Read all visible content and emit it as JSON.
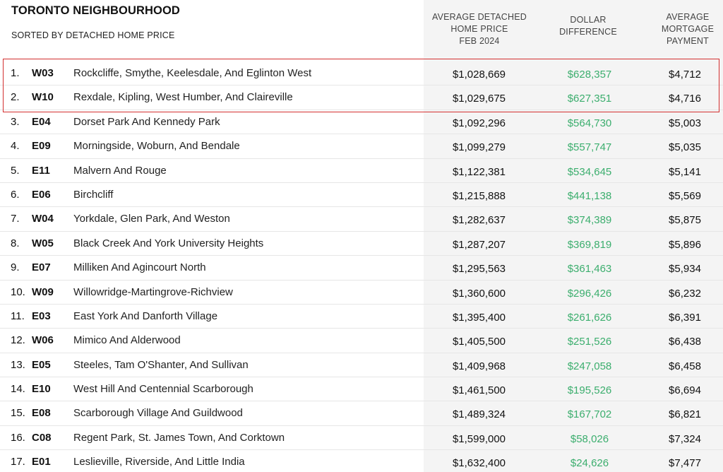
{
  "header": {
    "title": "TORONTO NEIGHBOURHOOD",
    "subtitle": "SORTED BY DETACHED HOME PRICE",
    "col_price": [
      "AVERAGE DETACHED",
      "HOME PRICE",
      "FEB 2024"
    ],
    "col_diff": [
      "DOLLAR",
      "DIFFERENCE"
    ],
    "col_mortgage": [
      "AVERAGE",
      "MORTGAGE",
      "PAYMENT"
    ]
  },
  "colors": {
    "difference_text": "#3cae6e",
    "highlight_border": "#d32f2f",
    "value_column_bg": "#f4f4f4"
  },
  "highlighted_rows": [
    1,
    2
  ],
  "chart_data": {
    "type": "table",
    "title": "TORONTO NEIGHBOURHOOD",
    "subtitle": "SORTED BY DETACHED HOME PRICE",
    "columns": [
      "",
      "",
      "",
      "AVERAGE DETACHED HOME PRICE FEB 2024",
      "DOLLAR DIFFERENCE",
      "AVERAGE MORTGAGE PAYMENT"
    ],
    "rows": [
      {
        "rank": "1.",
        "code": "W03",
        "name": "Rockcliffe, Smythe, Keelesdale, And Eglinton West",
        "price": "$1,028,669",
        "diff": "$628,357",
        "mortgage": "$4,712"
      },
      {
        "rank": "2.",
        "code": "W10",
        "name": "Rexdale, Kipling, West Humber, And Claireville",
        "price": "$1,029,675",
        "diff": "$627,351",
        "mortgage": "$4,716"
      },
      {
        "rank": "3.",
        "code": "E04",
        "name": "Dorset Park And Kennedy Park",
        "price": "$1,092,296",
        "diff": "$564,730",
        "mortgage": "$5,003"
      },
      {
        "rank": "4.",
        "code": "E09",
        "name": "Morningside, Woburn, And Bendale",
        "price": "$1,099,279",
        "diff": "$557,747",
        "mortgage": "$5,035"
      },
      {
        "rank": "5.",
        "code": "E11",
        "name": "Malvern And Rouge",
        "price": "$1,122,381",
        "diff": "$534,645",
        "mortgage": "$5,141"
      },
      {
        "rank": "6.",
        "code": "E06",
        "name": "Birchcliff",
        "price": "$1,215,888",
        "diff": "$441,138",
        "mortgage": "$5,569"
      },
      {
        "rank": "7.",
        "code": "W04",
        "name": "Yorkdale, Glen Park, And Weston",
        "price": "$1,282,637",
        "diff": "$374,389",
        "mortgage": "$5,875"
      },
      {
        "rank": "8.",
        "code": "W05",
        "name": "Black Creek And York University Heights",
        "price": "$1,287,207",
        "diff": "$369,819",
        "mortgage": "$5,896"
      },
      {
        "rank": "9.",
        "code": "E07",
        "name": "Milliken And Agincourt North",
        "price": "$1,295,563",
        "diff": "$361,463",
        "mortgage": "$5,934"
      },
      {
        "rank": "10.",
        "code": "W09",
        "name": "Willowridge-Martingrove-Richview",
        "price": "$1,360,600",
        "diff": "$296,426",
        "mortgage": "$6,232"
      },
      {
        "rank": "11.",
        "code": "E03",
        "name": "East York And Danforth Village",
        "price": "$1,395,400",
        "diff": "$261,626",
        "mortgage": "$6,391"
      },
      {
        "rank": "12.",
        "code": "W06",
        "name": "Mimico And Alderwood",
        "price": "$1,405,500",
        "diff": "$251,526",
        "mortgage": "$6,438"
      },
      {
        "rank": "13.",
        "code": "E05",
        "name": "Steeles, Tam O'Shanter, And Sullivan",
        "price": "$1,409,968",
        "diff": "$247,058",
        "mortgage": "$6,458"
      },
      {
        "rank": "14.",
        "code": "E10",
        "name": "West Hill And Centennial Scarborough",
        "price": "$1,461,500",
        "diff": "$195,526",
        "mortgage": "$6,694"
      },
      {
        "rank": "15.",
        "code": "E08",
        "name": "Scarborough Village And Guildwood",
        "price": "$1,489,324",
        "diff": "$167,702",
        "mortgage": "$6,821"
      },
      {
        "rank": "16.",
        "code": "C08",
        "name": "Regent Park, St. James Town, And Corktown",
        "price": "$1,599,000",
        "diff": "$58,026",
        "mortgage": "$7,324"
      },
      {
        "rank": "17.",
        "code": "E01",
        "name": "Leslieville, Riverside, And Little India",
        "price": "$1,632,400",
        "diff": "$24,626",
        "mortgage": "$7,477"
      }
    ]
  }
}
